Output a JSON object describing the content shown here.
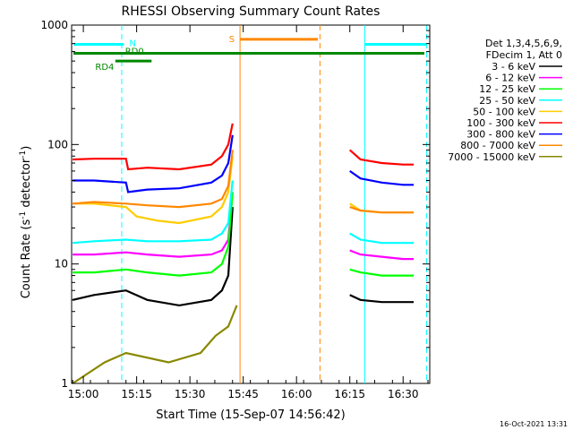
{
  "chart_data": {
    "type": "line",
    "title": "RHESSI Observing Summary Count Rates",
    "xlabel": "Start Time (15-Sep-07 14:56:42)",
    "ylabel_main": "Count Rate (s",
    "ylabel_sup1": "-1",
    "ylabel_mid": " detector",
    "ylabel_sup2": "-1",
    "ylabel_end": ")",
    "xlim": [
      14.945,
      16.625
    ],
    "ylim": [
      1,
      1000
    ],
    "y_log": true,
    "x_ticks": [
      {
        "label": "15:00",
        "v": 15.0
      },
      {
        "label": "15:15",
        "v": 15.25
      },
      {
        "label": "15:30",
        "v": 15.5
      },
      {
        "label": "15:45",
        "v": 15.75
      },
      {
        "label": "16:00",
        "v": 16.0
      },
      {
        "label": "16:15",
        "v": 16.25
      },
      {
        "label": "16:30",
        "v": 16.5
      }
    ],
    "y_ticks": [
      {
        "label": "1",
        "v": 1
      },
      {
        "label": "10",
        "v": 10
      },
      {
        "label": "100",
        "v": 100
      },
      {
        "label": "1000",
        "v": 1000
      }
    ],
    "legend_header": [
      "Det 1,3,4,5,6,9,",
      "FDecim 1, Att 0"
    ],
    "series": [
      {
        "name": "3 - 6 keV",
        "color": "#000000",
        "x": [
          14.95,
          15.05,
          15.2,
          15.3,
          15.45,
          15.6,
          15.65,
          15.68,
          15.7
        ],
        "y": [
          5,
          5.5,
          6,
          5,
          4.5,
          5,
          6,
          8,
          30
        ],
        "x2": [
          16.25,
          16.3,
          16.4,
          16.5,
          16.55
        ],
        "y2": [
          5.5,
          5,
          4.8,
          4.8,
          4.8
        ]
      },
      {
        "name": "6 - 12 keV",
        "color": "#ff00ff",
        "x": [
          14.95,
          15.05,
          15.2,
          15.3,
          15.45,
          15.6,
          15.65,
          15.68,
          15.7
        ],
        "y": [
          12,
          12,
          12.5,
          12,
          11.5,
          12,
          13,
          16,
          40
        ],
        "x2": [
          16.25,
          16.3,
          16.4,
          16.5,
          16.55
        ],
        "y2": [
          13,
          12,
          11.5,
          11,
          11
        ]
      },
      {
        "name": "12 - 25 keV",
        "color": "#00ff00",
        "x": [
          14.95,
          15.05,
          15.2,
          15.3,
          15.45,
          15.6,
          15.65,
          15.68,
          15.7
        ],
        "y": [
          8.5,
          8.5,
          9,
          8.5,
          8,
          8.5,
          10,
          14,
          40
        ],
        "x2": [
          16.25,
          16.3,
          16.4,
          16.5,
          16.55
        ],
        "y2": [
          9,
          8.5,
          8,
          8,
          8
        ]
      },
      {
        "name": "25 - 50 keV",
        "color": "#00ffff",
        "x": [
          14.95,
          15.05,
          15.2,
          15.3,
          15.45,
          15.6,
          15.65,
          15.68,
          15.7
        ],
        "y": [
          15,
          15.5,
          16,
          15.5,
          15.5,
          16,
          18,
          22,
          50
        ],
        "x2": [
          16.25,
          16.3,
          16.4,
          16.5,
          16.55
        ],
        "y2": [
          18,
          16,
          15,
          15,
          15
        ]
      },
      {
        "name": "50 - 100 keV",
        "color": "#ffcc00",
        "x": [
          14.95,
          15.05,
          15.2,
          15.25,
          15.35,
          15.45,
          15.6,
          15.65,
          15.68,
          15.7
        ],
        "y": [
          32,
          32,
          30,
          25,
          23,
          22,
          25,
          30,
          40,
          80
        ],
        "x2": [
          16.25,
          16.3,
          16.4,
          16.5,
          16.55
        ],
        "y2": [
          32,
          28,
          27,
          27,
          27
        ]
      },
      {
        "name": "100 - 300 keV",
        "color": "#ff0000",
        "x": [
          14.95,
          15.05,
          15.2,
          15.21,
          15.3,
          15.45,
          15.6,
          15.65,
          15.68,
          15.7
        ],
        "y": [
          75,
          76,
          76,
          62,
          64,
          62,
          68,
          80,
          100,
          150
        ],
        "x2": [
          16.25,
          16.3,
          16.4,
          16.5,
          16.55
        ],
        "y2": [
          90,
          75,
          70,
          68,
          68
        ]
      },
      {
        "name": "300 - 800 keV",
        "color": "#0000ff",
        "x": [
          14.95,
          15.05,
          15.2,
          15.21,
          15.3,
          15.45,
          15.6,
          15.65,
          15.68,
          15.7
        ],
        "y": [
          50,
          50,
          48,
          40,
          42,
          43,
          48,
          55,
          70,
          120
        ],
        "x2": [
          16.25,
          16.3,
          16.4,
          16.5,
          16.55
        ],
        "y2": [
          60,
          52,
          48,
          46,
          46
        ]
      },
      {
        "name": "800 - 7000 keV",
        "color": "#ff8800",
        "x": [
          14.95,
          15.05,
          15.2,
          15.3,
          15.45,
          15.6,
          15.65,
          15.68,
          15.7
        ],
        "y": [
          32,
          33,
          32,
          31,
          30,
          32,
          35,
          45,
          90
        ],
        "x2": [
          16.25,
          16.3,
          16.4,
          16.5,
          16.55
        ],
        "y2": [
          30,
          28,
          27,
          27,
          27
        ]
      },
      {
        "name": "7000 - 15000 keV",
        "color": "#888800",
        "x": [
          14.95,
          15.1,
          15.2,
          15.4,
          15.55,
          15.62,
          15.68,
          15.72
        ],
        "y": [
          1,
          1.5,
          1.8,
          1.5,
          1.8,
          2.5,
          3,
          4.5
        ],
        "x2": [],
        "y2": []
      }
    ],
    "annotations": {
      "flag_S": {
        "label": "S",
        "color": "#ff8800",
        "x0": 15.735,
        "x1": 16.1
      },
      "flag_N": {
        "label": "N",
        "color": "#00ffff",
        "x0": 14.955,
        "x1": 15.19
      },
      "flag_N2": {
        "label": "",
        "color": "#00ffff",
        "x0": 16.32,
        "x1": 16.61
      },
      "flag_RD4": {
        "label": "RD4",
        "color": "#008800"
      },
      "flag_RD0": {
        "label": "RD0",
        "color": "#008800"
      },
      "vlines": [
        {
          "x": 15.18,
          "color": "#00ffff",
          "dash": true
        },
        {
          "x": 15.735,
          "color": "#ff8800",
          "dash": false
        },
        {
          "x": 16.11,
          "color": "#ff8800",
          "dash": true
        },
        {
          "x": 16.32,
          "color": "#00ffff",
          "dash": false
        },
        {
          "x": 16.61,
          "color": "#00ffff",
          "dash": true
        }
      ]
    },
    "timestamp": "16-Oct-2021 13:31"
  }
}
